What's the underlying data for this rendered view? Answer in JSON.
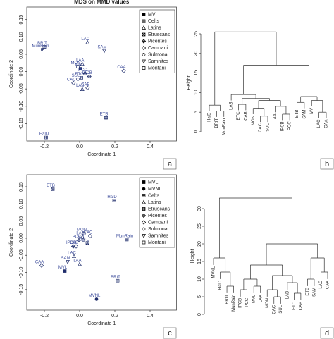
{
  "chart_data": [
    {
      "type": "scatter",
      "title": "MDS on MMD values",
      "xlabel": "Coordinate 1",
      "ylabel": "Coordinate 2",
      "panel_label": "a",
      "xlim": [
        -0.3,
        0.55
      ],
      "ylim": [
        -0.2,
        0.186
      ],
      "xticks": [
        -0.2,
        {
          "value": 0,
          "label": "0.0"
        },
        0.2,
        0.4
      ],
      "yticks": [
        0.15,
        {
          "value": 0.1,
          "label": "0.10"
        },
        0.05,
        {
          "value": 0,
          "label": "0.00"
        },
        -0.05,
        {
          "value": -0.1,
          "label": "-0.10"
        },
        -0.15
      ],
      "series": [
        {
          "name": "MV",
          "marker": "filled-square",
          "color": "#1f2d6b",
          "x": [
            0.005
          ],
          "y": [
            0.008
          ],
          "labels": [
            "MV"
          ]
        },
        {
          "name": "Celts",
          "marker": "square-plus",
          "color": "#1f2d6b",
          "x": [
            -0.2,
            -0.21,
            -0.19
          ],
          "y": [
            0.071,
            0.063,
            -0.19
          ],
          "labels": [
            "BRIT",
            "MunRain",
            "HalD"
          ]
        },
        {
          "name": "Latins",
          "marker": "triangle",
          "color": "#1f2d6b",
          "x": [
            0.045,
            0.015,
            0.015
          ],
          "y": [
            0.084,
            0.022,
            -0.051
          ],
          "labels": [
            "LAC",
            "LAA",
            "LAB"
          ]
        },
        {
          "name": "Etruscans",
          "marker": "square-x",
          "color": "#1f2d6b",
          "x": [
            0.01,
            0.15
          ],
          "y": [
            -0.018,
            -0.133
          ],
          "labels": [
            "ETC",
            "ETB"
          ]
        },
        {
          "name": "Picentes",
          "marker": "diamond-plus",
          "color": "#1f2d6b",
          "x": [
            0.055,
            0.03
          ],
          "y": [
            -0.014,
            -0.006
          ],
          "labels": [
            "IPCB",
            "PCC"
          ]
        },
        {
          "name": "Campani",
          "marker": "diamond",
          "color": "#1f2d6b",
          "x": [
            0.25,
            0.045,
            -0.035
          ],
          "y": [
            0.002,
            -0.047,
            -0.033
          ],
          "labels": [
            "CAA",
            "CAB",
            "CAC"
          ]
        },
        {
          "name": "Sulmona",
          "marker": "circle",
          "color": "#1f2d6b",
          "x": [
            -0.01
          ],
          "y": [
            -0.022
          ],
          "labels": [
            "SUL"
          ]
        },
        {
          "name": "Samnites",
          "marker": "inv-triangle",
          "color": "#1f2d6b",
          "x": [
            0.14
          ],
          "y": [
            0.06
          ],
          "labels": [
            "SAM"
          ]
        },
        {
          "name": "Montani",
          "marker": "square",
          "color": "#1f2d6b",
          "x": [
            -0.01
          ],
          "y": [
            0.014
          ],
          "labels": [
            "MON"
          ]
        }
      ]
    },
    {
      "type": "dendrogram",
      "ylabel": "Height",
      "panel_label": "b",
      "ylim": [
        0,
        25
      ],
      "yticks": [
        0,
        5,
        10,
        15,
        20,
        25
      ],
      "tree": {
        "height": 25.5,
        "children": [
          {
            "height": 6.8,
            "children": [
              "HalD",
              {
                "height": 5.3,
                "children": [
                  "BRIT",
                  "MunRain"
                ]
              }
            ]
          },
          {
            "height": 17,
            "children": [
              {
                "height": 9.5,
                "children": [
                  "LAB",
                  {
                    "height": 8.5,
                    "children": [
                      {
                        "height": 7,
                        "children": [
                          "ETC",
                          "CAB"
                        ]
                      },
                      {
                        "height": 8,
                        "children": [
                          {
                            "height": 6,
                            "children": [
                              "MON",
                              {
                                "height": 4,
                                "children": [
                                  "CAC",
                                  "SUL"
                                ]
                              }
                            ]
                          },
                          {
                            "height": 6.5,
                            "children": [
                              "LAA",
                              {
                                "height": 4.5,
                                "children": [
                                  "IPCB",
                                  "PCC"
                                ]
                              }
                            ]
                          }
                        ]
                      }
                    ]
                  }
                ]
              },
              {
                "height": 9,
                "children": [
                  {
                    "height": 7.5,
                    "children": [
                      "ETB",
                      "SAM"
                    ]
                  },
                  {
                    "height": 8,
                    "children": [
                      "MV",
                      {
                        "height": 5,
                        "children": [
                          "LAC",
                          "CAA"
                        ]
                      }
                    ]
                  }
                ]
              }
            ]
          }
        ]
      }
    },
    {
      "type": "scatter",
      "xlabel": "Coordinate 1",
      "ylabel": "Coordinate 2",
      "panel_label": "c",
      "xlim": [
        -0.3,
        0.55
      ],
      "ylim": [
        -0.21,
        0.185
      ],
      "xticks": [
        -0.2,
        {
          "value": 0,
          "label": "0.0"
        },
        0.2,
        0.4
      ],
      "yticks": [
        0.15,
        {
          "value": 0.1,
          "label": "0.10"
        },
        0.05,
        {
          "value": 0,
          "label": "0.00"
        },
        -0.05,
        {
          "value": -0.1,
          "label": "-0.10"
        },
        -0.15
      ],
      "series": [
        {
          "name": "MVL",
          "marker": "filled-square",
          "color": "#1f2d6b",
          "x": [
            -0.084
          ],
          "y": [
            -0.096
          ],
          "labels": [
            "MVL"
          ]
        },
        {
          "name": "MVNL",
          "marker": "filled-circle",
          "color": "#1f2d6b",
          "x": [
            0.096
          ],
          "y": [
            -0.178
          ],
          "labels": [
            "MVNL"
          ]
        },
        {
          "name": "Celts",
          "marker": "square-plus",
          "color": "#1f2d6b",
          "x": [
            0.196,
            0.268,
            0.216
          ],
          "y": [
            0.11,
            -0.004,
            -0.124
          ],
          "labels": [
            "HalD",
            "MunRain",
            "BRIT"
          ]
        },
        {
          "name": "Latins",
          "marker": "triangle",
          "color": "#1f2d6b",
          "x": [
            0.016,
            -0.032,
            0.0
          ],
          "y": [
            0.004,
            -0.053,
            -0.076
          ],
          "labels": [
            "LAB",
            "LAC",
            "LAA"
          ]
        },
        {
          "name": "Etruscans",
          "marker": "square-x",
          "color": "#1f2d6b",
          "x": [
            -0.152,
            0.044
          ],
          "y": [
            0.143,
            -0.014
          ],
          "labels": [
            "ETB",
            "ETC"
          ]
        },
        {
          "name": "Picentes",
          "marker": "diamond-plus",
          "color": "#1f2d6b",
          "x": [
            -0.036,
            -0.004
          ],
          "y": [
            -0.024,
            -0.006
          ],
          "labels": [
            "IPCB",
            "PCC"
          ]
        },
        {
          "name": "Campani",
          "marker": "diamond",
          "color": "#1f2d6b",
          "x": [
            0.06,
            -0.02,
            -0.216
          ],
          "y": [
            0.006,
            -0.024,
            -0.08
          ],
          "labels": [
            "CAC",
            "CAB",
            "CAA"
          ]
        },
        {
          "name": "Sulmona",
          "marker": "circle",
          "color": "#1f2d6b",
          "x": [
            0.02
          ],
          "y": [
            -0.006
          ],
          "labels": [
            "SUL"
          ]
        },
        {
          "name": "Samnites",
          "marker": "inv-triangle",
          "color": "#1f2d6b",
          "x": [
            -0.068
          ],
          "y": [
            -0.069
          ],
          "labels": [
            "SAM"
          ]
        },
        {
          "name": "Montani",
          "marker": "square",
          "color": "#1f2d6b",
          "x": [
            0.024
          ],
          "y": [
            0.014
          ],
          "labels": [
            "MON"
          ]
        }
      ]
    },
    {
      "type": "dendrogram",
      "ylabel": "Height",
      "panel_label": "d",
      "ylim": [
        0,
        33
      ],
      "yticks": [
        0,
        5,
        10,
        15,
        20,
        25,
        30
      ],
      "tree": {
        "height": 33,
        "children": [
          {
            "height": 16,
            "children": [
              "MVNL",
              {
                "height": 12,
                "children": [
                  "HalD",
                  {
                    "height": 8,
                    "children": [
                      "BRIT",
                      "MunRain"
                    ]
                  }
                ]
              }
            ]
          },
          {
            "height": 20,
            "children": [
              {
                "height": 14,
                "children": [
                  {
                    "height": 10,
                    "children": [
                      {
                        "height": 7,
                        "children": [
                          "IPCB",
                          "PCC"
                        ]
                      },
                      {
                        "height": 8,
                        "children": [
                          "MVL",
                          "LAA"
                        ]
                      }
                    ]
                  },
                  {
                    "height": 11,
                    "children": [
                      {
                        "height": 7,
                        "children": [
                          "MON",
                          {
                            "height": 5,
                            "children": [
                              "CAC",
                              "SUL"
                            ]
                          }
                        ]
                      },
                      {
                        "height": 9,
                        "children": [
                          "LAB",
                          {
                            "height": 6,
                            "children": [
                              "ETC",
                              "CAB"
                            ]
                          }
                        ]
                      }
                    ]
                  }
                ]
              },
              {
                "height": 16,
                "children": [
                  {
                    "height": 10,
                    "children": [
                      "ETB",
                      "SAM"
                    ]
                  },
                  {
                    "height": 12,
                    "children": [
                      "LAC",
                      "CAA"
                    ]
                  }
                ]
              }
            ]
          }
        ]
      }
    }
  ]
}
